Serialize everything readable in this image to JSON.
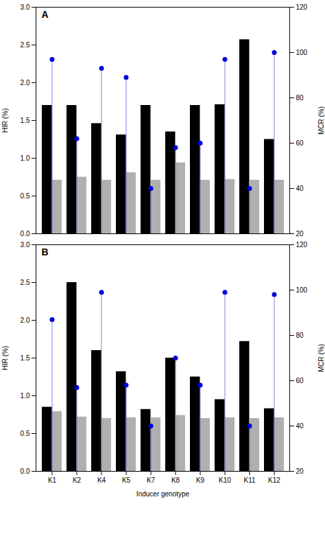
{
  "chart_data": [
    {
      "type": "bar",
      "title": "A",
      "categories": [
        "K1",
        "K2",
        "K4",
        "K5",
        "K7",
        "K8",
        "K9",
        "K10",
        "K11",
        "K12"
      ],
      "series": [
        {
          "type": "bar",
          "color": "#000000",
          "values": [
            1.7,
            1.7,
            1.46,
            1.31,
            1.7,
            1.35,
            1.7,
            1.71,
            2.57,
            1.25
          ]
        },
        {
          "type": "bar",
          "color": "#b0b0b0",
          "values": [
            0.71,
            0.75,
            0.71,
            0.81,
            0.71,
            0.94,
            0.71,
            0.72,
            0.71,
            0.71
          ]
        },
        {
          "type": "lollipop",
          "axis": "y2",
          "color": "#0000dd",
          "marker": "o",
          "values": [
            97,
            62,
            93,
            89,
            40,
            58,
            60,
            97,
            40,
            100
          ]
        }
      ],
      "ylabel": "HIR (%)",
      "y2label": "MCR (%)",
      "ylim": [
        0.0,
        3.0
      ],
      "yticks": [
        {
          "value": 0.0,
          "label": "0.0"
        },
        0.5,
        {
          "value": 1.0,
          "label": "1.0"
        },
        1.5,
        {
          "value": 2.0,
          "label": "2.0"
        },
        2.5,
        {
          "value": 3.0,
          "label": "3.0"
        }
      ],
      "y2lim": [
        20,
        120
      ],
      "y2ticks": [
        20,
        40,
        60,
        80,
        100,
        120
      ],
      "grid": false,
      "tick_labels": "y"
    },
    {
      "type": "bar",
      "title": "B",
      "categories": [
        "K1",
        "K2",
        "K4",
        "K5",
        "K7",
        "K8",
        "K9",
        "K10",
        "K11",
        "K12"
      ],
      "series": [
        {
          "type": "bar",
          "color": "#000000",
          "values": [
            0.85,
            2.5,
            1.6,
            1.32,
            0.82,
            1.5,
            1.25,
            0.95,
            1.72,
            0.83
          ]
        },
        {
          "type": "bar",
          "color": "#b0b0b0",
          "values": [
            0.79,
            0.72,
            0.7,
            0.71,
            0.71,
            0.74,
            0.7,
            0.71,
            0.7,
            0.71
          ]
        },
        {
          "type": "lollipop",
          "axis": "y2",
          "color": "#0000dd",
          "marker": "o",
          "values": [
            87,
            57,
            99,
            58,
            40,
            70,
            58,
            99,
            40,
            98
          ]
        }
      ],
      "xlabel": "Inducer genotype",
      "ylabel": "HIR (%)",
      "y2label": "MCR (%)",
      "ylim": [
        0.0,
        3.0
      ],
      "yticks": [
        {
          "value": 0.0,
          "label": "0.0"
        },
        0.5,
        {
          "value": 1.0,
          "label": "1.0"
        },
        1.5,
        {
          "value": 2.0,
          "label": "2.0"
        },
        2.5,
        {
          "value": 3.0,
          "label": "3.0"
        }
      ],
      "y2lim": [
        20,
        120
      ],
      "y2ticks": [
        20,
        40,
        60,
        80,
        100,
        120
      ],
      "grid": false
    }
  ]
}
